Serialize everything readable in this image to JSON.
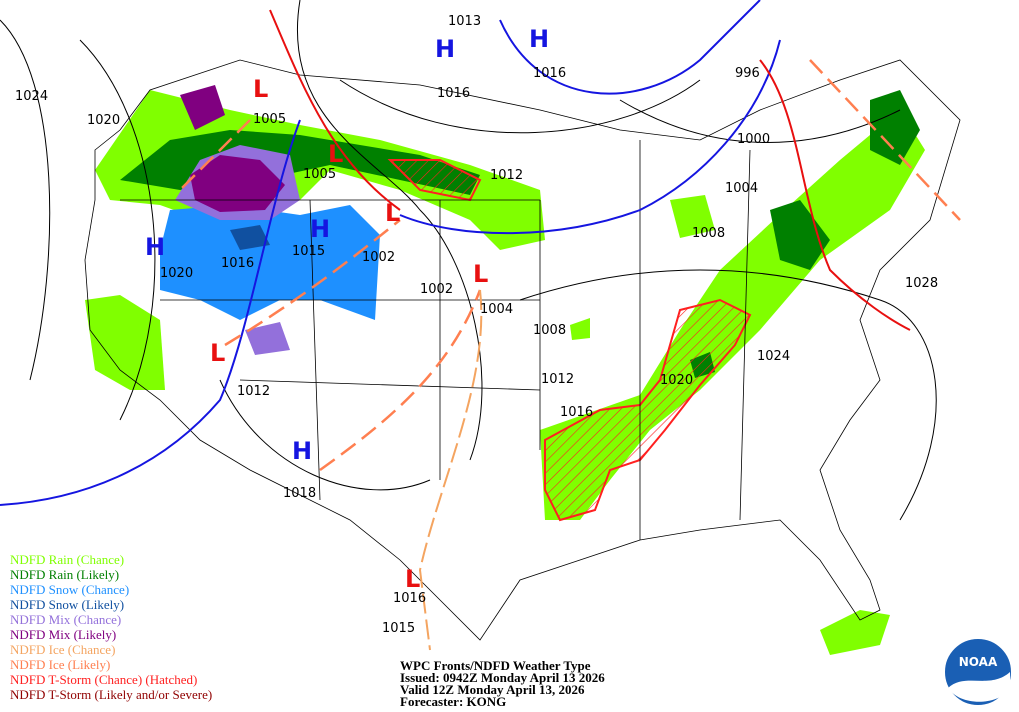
{
  "pressure_labels": [
    "1024",
    "1020",
    "1005",
    "1005",
    "1013",
    "1016",
    "1016",
    "1012",
    "996",
    "1000",
    "1004",
    "1008",
    "1015",
    "1002",
    "1016",
    "1020",
    "1002",
    "1004",
    "1008",
    "1028",
    "1024",
    "1020",
    "1012",
    "1016",
    "1012",
    "1018",
    "1016",
    "1015"
  ],
  "highs": [
    "H",
    "H",
    "H",
    "H",
    "H"
  ],
  "lows": [
    "L",
    "L",
    "L",
    "L",
    "L",
    "L"
  ],
  "legend": [
    {
      "label": "NDFD Rain (Chance)",
      "color": "#80ff00"
    },
    {
      "label": "NDFD Rain (Likely)",
      "color": "#008000"
    },
    {
      "label": "NDFD Snow (Chance)",
      "color": "#1e90ff"
    },
    {
      "label": "NDFD Snow (Likely)",
      "color": "#1050a0"
    },
    {
      "label": "NDFD Mix (Chance)",
      "color": "#9370db"
    },
    {
      "label": "NDFD Mix (Likely)",
      "color": "#800080"
    },
    {
      "label": "NDFD Ice (Chance)",
      "color": "#f4a460"
    },
    {
      "label": "NDFD Ice (Likely)",
      "color": "#ff7f50"
    },
    {
      "label": "NDFD T-Storm (Chance) (Hatched)",
      "color": "#ff2020"
    },
    {
      "label": "NDFD T-Storm (Likely and/or Severe)",
      "color": "#900000"
    }
  ],
  "info": [
    "WPC Fronts/NDFD Weather Type",
    "Issued: 0942Z Monday April 13 2026",
    "Valid 12Z Monday April 13, 2026",
    "Forecaster: KONG"
  ],
  "logo": "NOAA"
}
